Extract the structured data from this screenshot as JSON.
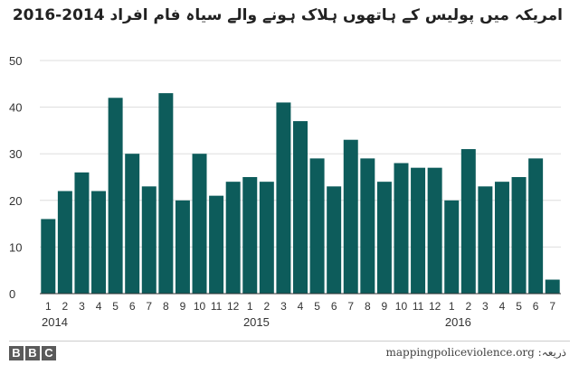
{
  "title": "امریکہ میں پولیس کے ہاتھوں ہلاک ہونے والے سیاہ فام افراد  2014-2016",
  "source": "ذریعہ: mappingpoliceviolence.org",
  "logo": [
    "B",
    "B",
    "C"
  ],
  "chart_data": {
    "type": "bar",
    "color": "#0d5c5b",
    "ylim": [
      0,
      50
    ],
    "yticks": [
      0,
      10,
      20,
      30,
      40,
      50
    ],
    "grid": true,
    "categories": [
      "1",
      "2",
      "3",
      "4",
      "5",
      "6",
      "7",
      "8",
      "9",
      "10",
      "11",
      "12",
      "1",
      "2",
      "3",
      "4",
      "5",
      "6",
      "7",
      "8",
      "9",
      "10",
      "11",
      "12",
      "1",
      "2",
      "3",
      "4",
      "5",
      "6",
      "7"
    ],
    "values": [
      16,
      22,
      26,
      22,
      42,
      30,
      23,
      43,
      20,
      30,
      21,
      24,
      25,
      24,
      41,
      37,
      29,
      23,
      33,
      29,
      24,
      28,
      27,
      27,
      20,
      31,
      23,
      24,
      25,
      29,
      3
    ],
    "year_labels": [
      {
        "label": "2014",
        "index": 0
      },
      {
        "label": "2015",
        "index": 12
      },
      {
        "label": "2016",
        "index": 24
      }
    ]
  }
}
